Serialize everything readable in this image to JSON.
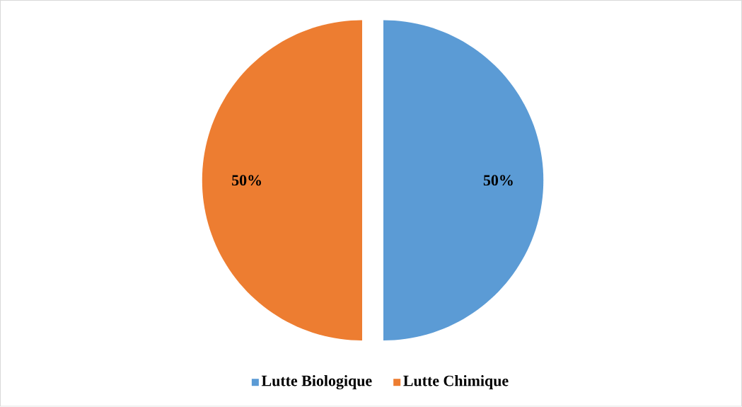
{
  "chart_data": {
    "type": "pie",
    "categories": [
      "Lutte Biologique",
      "Lutte Chimique"
    ],
    "values": [
      50,
      50
    ],
    "colors": [
      "#5b9bd5",
      "#ed7d31"
    ],
    "value_labels": [
      "50%",
      "50%"
    ],
    "legend": "bottom"
  }
}
